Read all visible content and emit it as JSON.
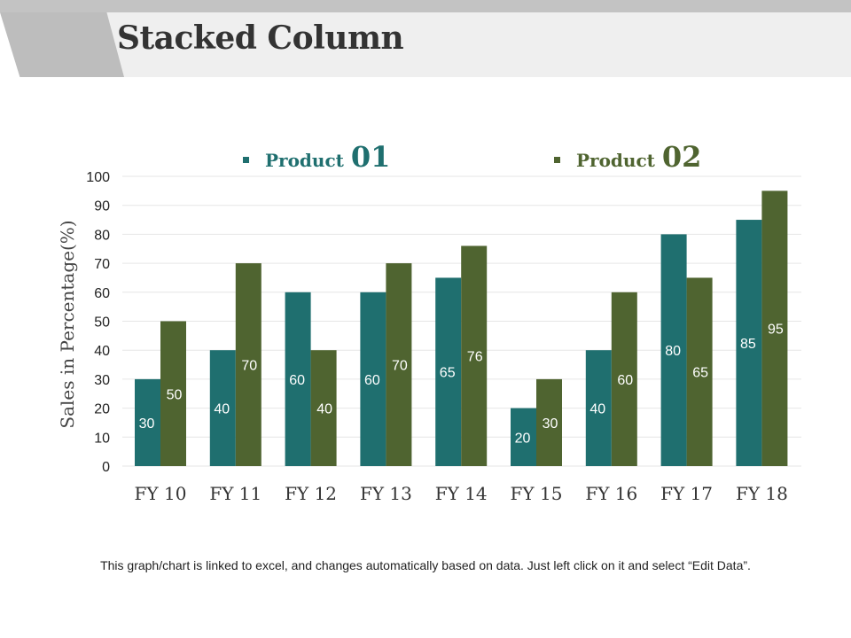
{
  "slide": {
    "title": "Stacked Column",
    "footnote": "This graph/chart is linked to excel, and changes automatically based on data. Just left click on it and select “Edit Data”."
  },
  "legend": {
    "p1_label": "Product",
    "p1_num": "01",
    "p2_label": "Product",
    "p2_num": "02"
  },
  "colors": {
    "product1": "#1f6f6f",
    "product2": "#4f6430",
    "grid": "#e6e6e6"
  },
  "chart_data": {
    "type": "bar",
    "title": "",
    "xlabel": "",
    "ylabel": "Sales in Percentage(%)",
    "ylim": [
      0,
      100
    ],
    "yticks": [
      0,
      10,
      20,
      30,
      40,
      50,
      60,
      70,
      80,
      90,
      100
    ],
    "categories": [
      "FY 10",
      "FY 11",
      "FY 12",
      "FY 13",
      "FY 14",
      "FY 15",
      "FY 16",
      "FY 17",
      "FY 18"
    ],
    "series": [
      {
        "name": "Product 01",
        "values": [
          30,
          40,
          60,
          60,
          65,
          20,
          40,
          80,
          85
        ]
      },
      {
        "name": "Product 02",
        "values": [
          50,
          70,
          40,
          70,
          76,
          30,
          60,
          65,
          95
        ]
      }
    ],
    "legend_position": "top"
  }
}
